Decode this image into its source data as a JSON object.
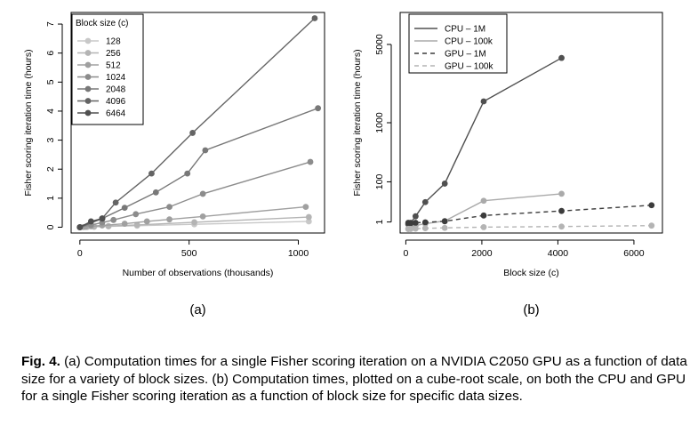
{
  "chart_data": [
    {
      "type": "line",
      "sublabel": "(a)",
      "xlabel": "Number of observations (thousands)",
      "ylabel": "Fisher scoring iteration time (hours)",
      "xlim": [
        -40,
        1120
      ],
      "ylim": [
        -0.2,
        7.4
      ],
      "xticks": [
        0,
        500,
        1000
      ],
      "yticks": [
        0,
        1,
        2,
        3,
        4,
        5,
        6,
        7
      ],
      "grid": false,
      "legend_title": "Block size (c)",
      "legend_position": "top-left",
      "series": [
        {
          "name": "128",
          "color": "#c8c8c8",
          "x": [
            0,
            16,
            33,
            65,
            131,
            262,
            524,
            1048
          ],
          "y": [
            0.0,
            0.003,
            0.006,
            0.013,
            0.026,
            0.05,
            0.1,
            0.2
          ]
        },
        {
          "name": "256",
          "color": "#b4b4b4",
          "x": [
            0,
            16,
            33,
            65,
            131,
            262,
            524,
            1048
          ],
          "y": [
            0.0,
            0.005,
            0.01,
            0.02,
            0.04,
            0.08,
            0.17,
            0.35
          ]
        },
        {
          "name": "512",
          "color": "#a0a0a0",
          "x": [
            0,
            25,
            51,
            102,
            205,
            307,
            410,
            563,
            1034
          ],
          "y": [
            0.0,
            0.01,
            0.03,
            0.06,
            0.12,
            0.2,
            0.27,
            0.37,
            0.7
          ]
        },
        {
          "name": "1024",
          "color": "#8c8c8c",
          "x": [
            0,
            51,
            102,
            154,
            256,
            410,
            563,
            1055
          ],
          "y": [
            0.0,
            0.08,
            0.16,
            0.25,
            0.45,
            0.7,
            1.15,
            2.25
          ]
        },
        {
          "name": "2048",
          "color": "#787878",
          "x": [
            0,
            102,
            205,
            348,
            492,
            574,
            1090
          ],
          "y": [
            0.0,
            0.3,
            0.67,
            1.2,
            1.85,
            2.65,
            4.1
          ]
        },
        {
          "name": "4096",
          "color": "#646464",
          "x": [
            0,
            102,
            164,
            328,
            516,
            1075
          ],
          "y": [
            0.0,
            0.3,
            0.85,
            1.85,
            3.25,
            7.2
          ]
        },
        {
          "name": "6464",
          "color": "#505050",
          "x": [
            0,
            51,
            103
          ],
          "y": [
            0.0,
            0.2,
            0.3
          ]
        }
      ]
    },
    {
      "type": "line",
      "sublabel": "(b)",
      "xlabel": "Block size (c)",
      "ylabel": "Fisher scoring iteration time (hours)",
      "scale": "cube-root",
      "xlim": [
        -150,
        6750
      ],
      "ylim": [
        0,
        8000
      ],
      "xticks": [
        0,
        2000,
        4000,
        6000
      ],
      "yticks": [
        1,
        100,
        1000,
        5000
      ],
      "grid": false,
      "legend_position": "top-left",
      "series": [
        {
          "name": "CPU – 1M",
          "color": "#505050",
          "dash": "solid",
          "x": [
            64,
            128,
            256,
            512,
            1024,
            2048,
            4096
          ],
          "y": [
            0.5,
            0.8,
            3.5,
            22,
            90,
            1700,
            4000
          ]
        },
        {
          "name": "CPU – 100k",
          "color": "#aaaaaa",
          "dash": "solid",
          "x": [
            64,
            128,
            256,
            512,
            1024,
            2048,
            4096
          ],
          "y": [
            0.05,
            0.1,
            0.3,
            0.6,
            1.3,
            25,
            45
          ]
        },
        {
          "name": "GPU – 1M",
          "color": "#3c3c3c",
          "dash": "dashed",
          "x": [
            64,
            128,
            256,
            512,
            1024,
            2048,
            4096,
            6464
          ],
          "y": [
            0.8,
            0.7,
            0.8,
            0.9,
            1.2,
            4,
            8,
            16
          ]
        },
        {
          "name": "GPU – 100k",
          "color": "#b4b4b4",
          "dash": "dashed",
          "x": [
            64,
            128,
            256,
            512,
            1024,
            2048,
            4096,
            6464
          ],
          "y": [
            0.05,
            0.05,
            0.06,
            0.08,
            0.1,
            0.15,
            0.2,
            0.3
          ]
        }
      ]
    }
  ],
  "caption": {
    "label": "Fig. 4.",
    "text": "(a) Computation times for a single Fisher scoring iteration on a NVIDIA C2050 GPU as a function of data size for a variety of block sizes. (b) Computation times, plotted on a cube-root scale, on both the CPU and GPU for a single Fisher scoring iteration as a function of block size for specific data sizes."
  }
}
